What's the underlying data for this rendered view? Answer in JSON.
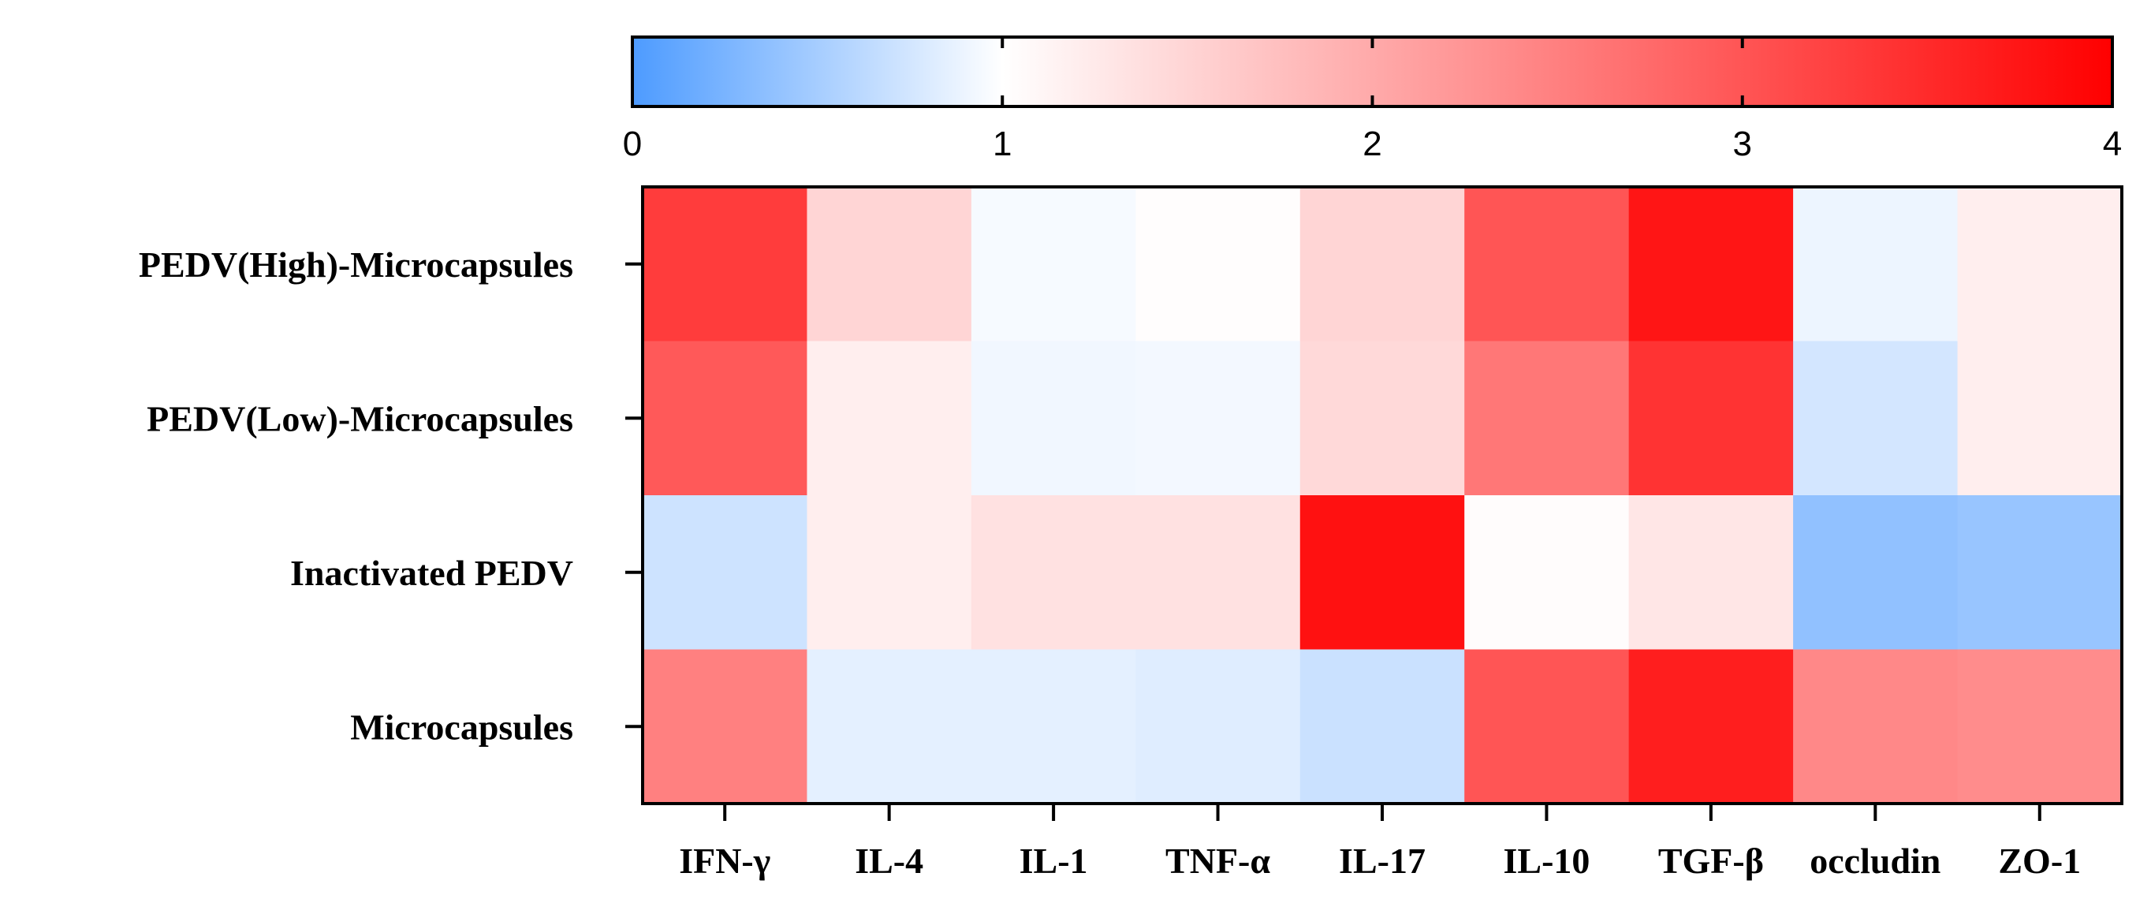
{
  "chart_data": {
    "type": "heatmap",
    "title": "",
    "xlabel": "",
    "ylabel": "",
    "rows": [
      "PEDV(High)-Microcapsules",
      "PEDV(Low)-Microcapsules",
      "Inactivated PEDV",
      "Microcapsules"
    ],
    "columns": [
      "IFN-γ",
      "IL-4",
      "IL-1",
      "TNF-α",
      "IL-17",
      "IL-10",
      "TGF-β",
      "occludin",
      "ZO-1"
    ],
    "values": [
      [
        3.3,
        1.5,
        0.95,
        1.02,
        1.5,
        3.0,
        3.75,
        0.9,
        1.2
      ],
      [
        2.95,
        1.2,
        0.92,
        0.93,
        1.45,
        2.6,
        3.4,
        0.75,
        1.2
      ],
      [
        0.72,
        1.2,
        1.35,
        1.35,
        3.8,
        1.03,
        1.3,
        0.38,
        0.42
      ],
      [
        2.5,
        0.85,
        0.85,
        0.82,
        0.7,
        3.0,
        3.65,
        2.4,
        2.35
      ]
    ],
    "colorbar": {
      "min": 0,
      "max": 4,
      "ticks": [
        "0",
        "1",
        "2",
        "3",
        "4"
      ],
      "tick_values": [
        0,
        1,
        2,
        3,
        4
      ],
      "placement": "top",
      "low_color": "#4d9bff",
      "mid_color": "#ffffff",
      "mid_value": 1,
      "high_color": "#ff0000"
    },
    "grid": false,
    "legend": "colorbar-top"
  }
}
